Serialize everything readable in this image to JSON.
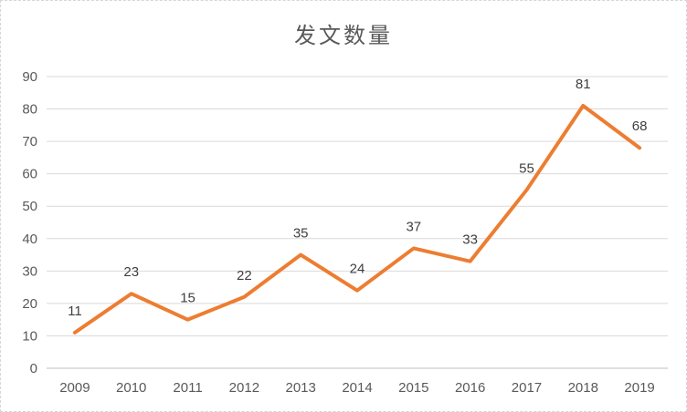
{
  "chart_data": {
    "type": "line",
    "title": "发文数量",
    "categories": [
      "2009",
      "2010",
      "2011",
      "2012",
      "2013",
      "2014",
      "2015",
      "2016",
      "2017",
      "2018",
      "2019"
    ],
    "series": [
      {
        "name": "发文数量",
        "values": [
          11,
          23,
          15,
          22,
          35,
          24,
          37,
          33,
          55,
          81,
          68
        ]
      }
    ],
    "data_labels_shown": true,
    "xlabel": "",
    "ylabel": "",
    "ylim": [
      0,
      90
    ],
    "ytick_step": 10,
    "ytick_labels": [
      "0",
      "10",
      "20",
      "30",
      "40",
      "50",
      "60",
      "70",
      "80",
      "90"
    ],
    "grid": "horizontal",
    "legend_position": "none",
    "colors": {
      "line": "#ED7D31",
      "gridline": "#D9D9D9",
      "axis_line": "#BFBFBF",
      "title_text": "#595959",
      "tick_text": "#595959",
      "data_label_text": "#404040",
      "background": "#FFFFFF",
      "frame_border": "#D6D6D6"
    }
  }
}
